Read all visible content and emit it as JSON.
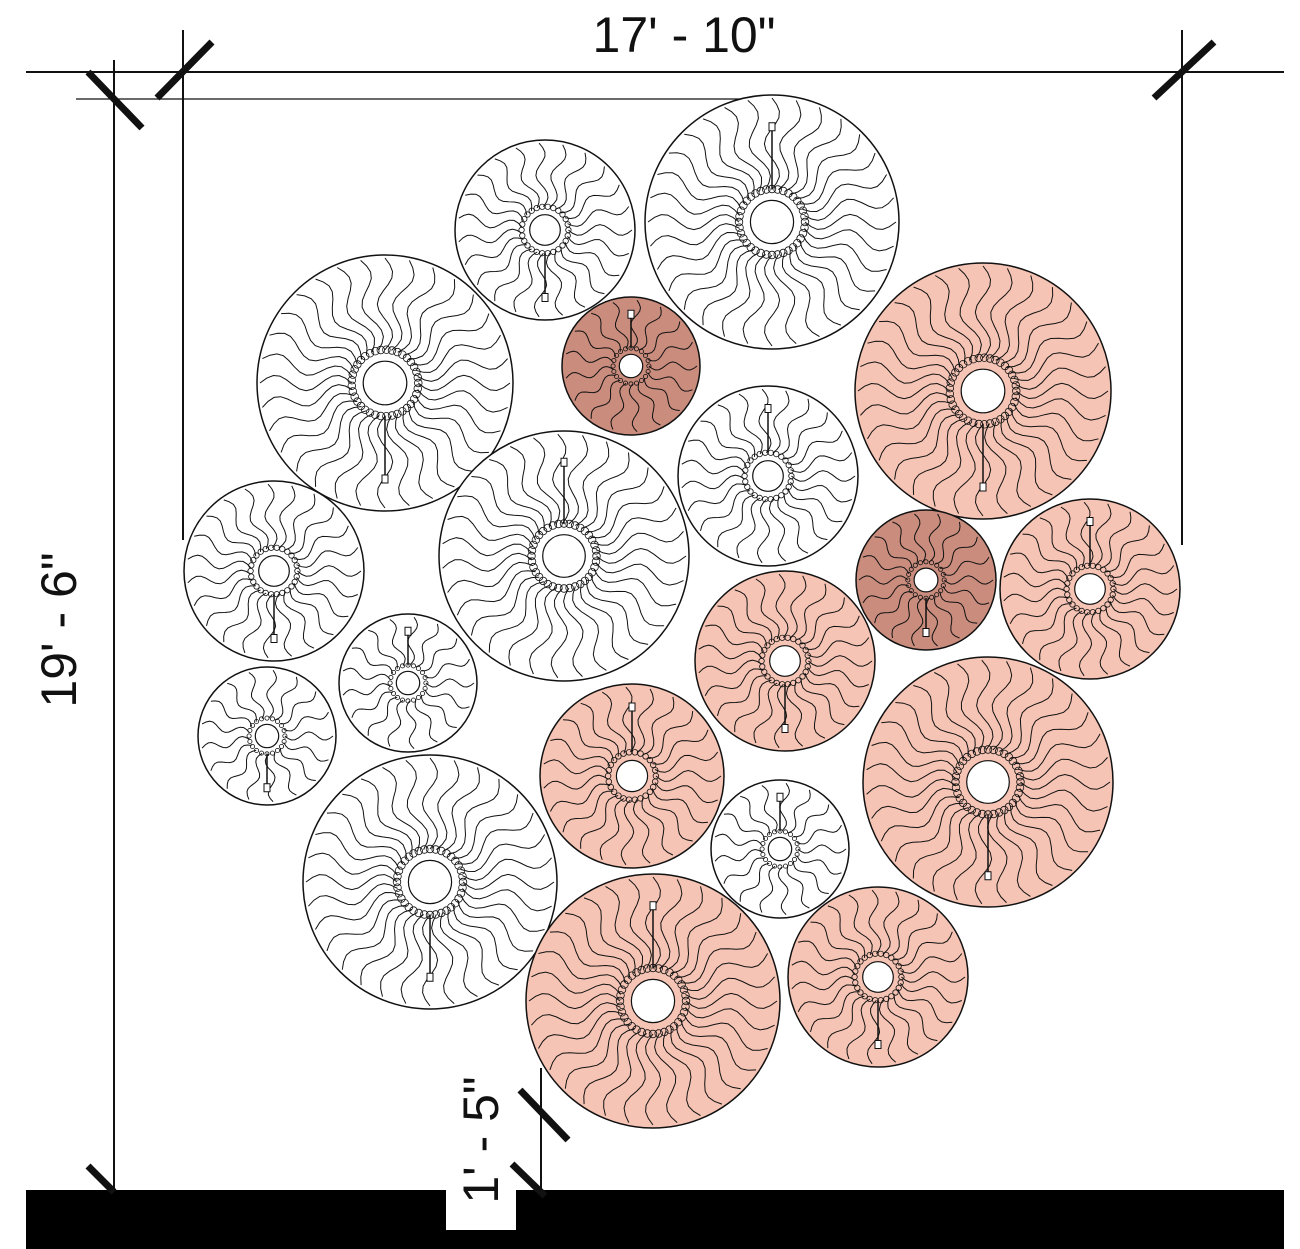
{
  "dimensions": {
    "width_label": "17' - 10\"",
    "height_label": "19' - 6\"",
    "gap_label": "1' - 5\""
  },
  "colors": {
    "line": "#111111",
    "highlight_fill": "#f6c4b4",
    "highlight_dark_fill": "#c98c7d",
    "wall": "#000000"
  },
  "plants": {
    "count": 19,
    "highlighted_count": 9
  }
}
